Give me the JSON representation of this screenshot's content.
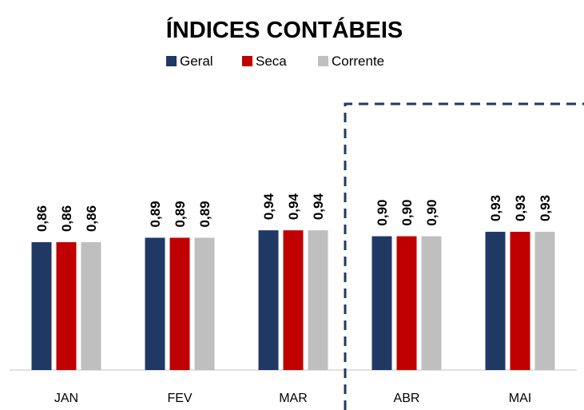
{
  "chart_data": {
    "type": "bar",
    "title": "ÍNDICES CONTÁBEIS",
    "categories": [
      "JAN",
      "FEV",
      "MAR",
      "ABR",
      "MAI"
    ],
    "series": [
      {
        "name": "Geral",
        "color": "#203864",
        "values": [
          0.86,
          0.89,
          0.94,
          0.9,
          0.93
        ],
        "value_labels": [
          "0,86",
          "0,89",
          "0,94",
          "0,90",
          "0,93"
        ]
      },
      {
        "name": "Seca",
        "color": "#c00000",
        "values": [
          0.86,
          0.89,
          0.94,
          0.9,
          0.93
        ],
        "value_labels": [
          "0,86",
          "0,89",
          "0,94",
          "0,90",
          "0,93"
        ]
      },
      {
        "name": "Corrente",
        "color": "#bfbfbf",
        "values": [
          0.86,
          0.89,
          0.94,
          0.9,
          0.93
        ],
        "value_labels": [
          "0,86",
          "0,89",
          "0,94",
          "0,90",
          "0,93"
        ]
      }
    ],
    "ylim": [
      0,
      2
    ],
    "legend": "top"
  }
}
